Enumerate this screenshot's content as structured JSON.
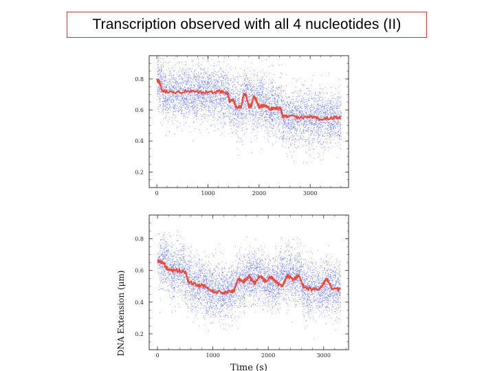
{
  "slide": {
    "title": "Transcription observed with all 4 nucleotides (II)"
  },
  "colors": {
    "raw_points": "#5a6cf0",
    "smoothed_trace": "#ee4b3c",
    "axis": "#333333",
    "title_border": "#c23b3b"
  },
  "chart_data": [
    {
      "type": "scatter",
      "title": "",
      "xlabel": "",
      "ylabel": "",
      "xlim": [
        -150,
        3750
      ],
      "ylim": [
        0.1,
        0.95
      ],
      "xticks": [
        0,
        1000,
        2000,
        3000
      ],
      "yticks": [
        0.2,
        0.4,
        0.6,
        0.8
      ],
      "xtick_labels": [
        "0",
        "1000",
        "2000",
        "3000"
      ],
      "ytick_labels": [
        "0.2",
        "0.4",
        "0.6",
        "0.8"
      ],
      "grid": false,
      "series": [
        {
          "kind": "raw",
          "x_range": [
            0,
            3600
          ],
          "noise_sd": 0.09,
          "segments": [
            {
              "x": [
                0,
                100
              ],
              "y": 0.78
            },
            {
              "x": [
                100,
                1400
              ],
              "y": 0.71
            },
            {
              "x": [
                1400,
                1500
              ],
              "y": 0.65
            },
            {
              "x": [
                1500,
                1700
              ],
              "y": 0.62
            },
            {
              "x": [
                1700,
                1850
              ],
              "y": 0.69
            },
            {
              "x": [
                1850,
                1950
              ],
              "y": 0.64
            },
            {
              "x": [
                1950,
                2100
              ],
              "y": 0.67
            },
            {
              "x": [
                2100,
                2450
              ],
              "y": 0.61
            },
            {
              "x": [
                2450,
                3600
              ],
              "y": 0.55
            }
          ]
        },
        {
          "kind": "smoothed",
          "x": [
            0,
            50,
            100,
            300,
            600,
            900,
            1200,
            1380,
            1420,
            1500,
            1550,
            1650,
            1700,
            1750,
            1800,
            1850,
            1900,
            1950,
            2000,
            2100,
            2200,
            2300,
            2420,
            2460,
            2600,
            2800,
            3000,
            3200,
            3400,
            3600
          ],
          "y": [
            0.79,
            0.78,
            0.72,
            0.71,
            0.72,
            0.71,
            0.72,
            0.71,
            0.66,
            0.66,
            0.62,
            0.62,
            0.7,
            0.69,
            0.62,
            0.63,
            0.69,
            0.66,
            0.62,
            0.63,
            0.61,
            0.61,
            0.61,
            0.56,
            0.56,
            0.55,
            0.56,
            0.54,
            0.55,
            0.55
          ]
        }
      ]
    },
    {
      "type": "scatter",
      "title": "",
      "xlabel": "Time (s)",
      "ylabel": "DNA Extension (μm)",
      "xlim": [
        -150,
        3450
      ],
      "ylim": [
        0.1,
        0.95
      ],
      "xticks": [
        0,
        1000,
        2000,
        3000
      ],
      "yticks": [
        0.2,
        0.4,
        0.6,
        0.8
      ],
      "xtick_labels": [
        "0",
        "1000",
        "2000",
        "3000"
      ],
      "ytick_labels": [
        "0.2",
        "0.4",
        "0.6",
        "0.8"
      ],
      "grid": false,
      "series": [
        {
          "kind": "raw",
          "x_range": [
            0,
            3300
          ],
          "noise_sd": 0.085,
          "segments": [
            {
              "x": [
                0,
                200
              ],
              "y": 0.65
            },
            {
              "x": [
                200,
                500
              ],
              "y": 0.6
            },
            {
              "x": [
                500,
                600
              ],
              "y": 0.54
            },
            {
              "x": [
                600,
                850
              ],
              "y": 0.51
            },
            {
              "x": [
                850,
                1400
              ],
              "y": 0.47
            },
            {
              "x": [
                1400,
                1600
              ],
              "y": 0.53
            },
            {
              "x": [
                1600,
                1900
              ],
              "y": 0.56
            },
            {
              "x": [
                1900,
                2200
              ],
              "y": 0.53
            },
            {
              "x": [
                2200,
                2600
              ],
              "y": 0.57
            },
            {
              "x": [
                2600,
                3300
              ],
              "y": 0.49
            }
          ]
        },
        {
          "kind": "smoothed",
          "x": [
            0,
            100,
            200,
            350,
            500,
            560,
            700,
            850,
            1000,
            1200,
            1380,
            1450,
            1550,
            1650,
            1750,
            1850,
            1950,
            2050,
            2150,
            2250,
            2350,
            2450,
            2550,
            2650,
            2800,
            2950,
            3050,
            3150,
            3300
          ],
          "y": [
            0.66,
            0.65,
            0.6,
            0.6,
            0.59,
            0.53,
            0.51,
            0.5,
            0.47,
            0.46,
            0.47,
            0.55,
            0.53,
            0.56,
            0.52,
            0.57,
            0.53,
            0.56,
            0.52,
            0.5,
            0.57,
            0.54,
            0.57,
            0.49,
            0.48,
            0.49,
            0.55,
            0.49,
            0.48
          ]
        }
      ]
    }
  ]
}
